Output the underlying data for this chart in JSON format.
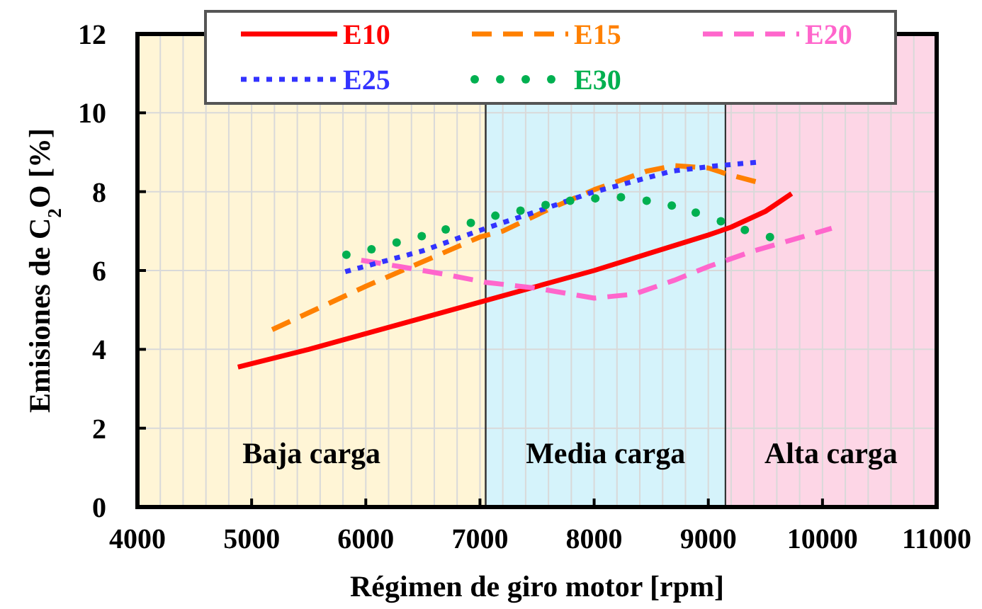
{
  "chart_data": {
    "type": "line",
    "xlabel": "Régimen de giro motor [rpm]",
    "ylabel": "Emisiones de C$_{2}$O [%]",
    "xlim": [
      4000,
      11000
    ],
    "xticks": [
      4000,
      {
        "value": 4200,
        "label": null
      },
      {
        "value": 4400,
        "label": null
      },
      {
        "value": 4600,
        "label": null
      },
      {
        "value": 4800,
        "label": null
      },
      5000,
      {
        "value": 5200,
        "label": null
      },
      {
        "value": 5400,
        "label": null
      },
      {
        "value": 5600,
        "label": null
      },
      {
        "value": 5800,
        "label": null
      },
      6000,
      {
        "value": 6200,
        "label": null
      },
      {
        "value": 6400,
        "label": null
      },
      {
        "value": 6600,
        "label": null
      },
      {
        "value": 6800,
        "label": null
      },
      7000,
      {
        "value": 7200,
        "label": null
      },
      {
        "value": 7400,
        "label": null
      },
      {
        "value": 7600,
        "label": null
      },
      {
        "value": 7800,
        "label": null
      },
      8000,
      {
        "value": 8200,
        "label": null
      },
      {
        "value": 8400,
        "label": null
      },
      {
        "value": 8600,
        "label": null
      },
      {
        "value": 8800,
        "label": null
      },
      9000,
      {
        "value": 9200,
        "label": null
      },
      {
        "value": 9400,
        "label": null
      },
      {
        "value": 9600,
        "label": null
      },
      {
        "value": 9800,
        "label": null
      },
      10000,
      {
        "value": 10200,
        "label": null
      },
      {
        "value": 10400,
        "label": null
      },
      {
        "value": 10600,
        "label": null
      },
      {
        "value": 10800,
        "label": null
      },
      11000
    ],
    "ylim": [
      0,
      12
    ],
    "yticks": [
      0,
      2,
      4,
      6,
      8,
      10,
      12
    ],
    "grid": true,
    "legend": "top",
    "bands": [
      {
        "axis": "x",
        "from": 4000,
        "to": 7050,
        "label": "Baja carga",
        "color": "#fff5d6"
      },
      {
        "axis": "x",
        "from": 7050,
        "to": 9150,
        "label": "Media carga",
        "color": "#d5f3fb"
      },
      {
        "axis": "x",
        "from": 9150,
        "to": 11000,
        "label": "Alta carga",
        "color": "#fdd6e6"
      }
    ],
    "series": [
      {
        "name": "E10",
        "color": "#ff0000",
        "line_style": "solid",
        "marker": "none",
        "x": [
          4880,
          5500,
          6000,
          6500,
          7000,
          7500,
          8000,
          8500,
          9000,
          9200,
          9500,
          9730
        ],
        "values": [
          3.55,
          4.0,
          4.4,
          4.8,
          5.2,
          5.6,
          6.0,
          6.45,
          6.9,
          7.1,
          7.5,
          7.95
        ]
      },
      {
        "name": "E15",
        "color": "#ff8000",
        "line_style": "dashed",
        "marker": "none",
        "x": [
          5180,
          6000,
          7000,
          7200,
          7600,
          8000,
          8460,
          8700,
          9000,
          9160,
          9420
        ],
        "values": [
          4.5,
          5.6,
          6.85,
          7.0,
          7.55,
          8.05,
          8.52,
          8.66,
          8.6,
          8.45,
          8.25
        ]
      },
      {
        "name": "E20",
        "color": "#ff66cc",
        "line_style": "dashed",
        "marker": "none",
        "x": [
          5960,
          6300,
          6700,
          7050,
          7500,
          8000,
          8350,
          8700,
          9000,
          9400,
          10080
        ],
        "values": [
          6.26,
          6.1,
          5.9,
          5.7,
          5.55,
          5.3,
          5.4,
          5.75,
          6.1,
          6.5,
          7.07
        ]
      },
      {
        "name": "E25",
        "color": "#3333ff",
        "line_style": "dotted",
        "marker": "none",
        "x": [
          5820,
          6500,
          7050,
          7500,
          7970,
          8680,
          9050,
          9440
        ],
        "values": [
          5.97,
          6.5,
          7.07,
          7.5,
          7.97,
          8.52,
          8.65,
          8.75
        ]
      },
      {
        "name": "E30",
        "type": "scatter",
        "color": "#00b050",
        "marker": "circle",
        "x": [
          5830,
          6050,
          6270,
          6490,
          6700,
          6920,
          7135,
          7355,
          7575,
          7790,
          8010,
          8235,
          8460,
          8680,
          8890,
          9110,
          9320,
          9540
        ],
        "values": [
          6.4,
          6.54,
          6.71,
          6.87,
          7.04,
          7.21,
          7.39,
          7.52,
          7.66,
          7.77,
          7.83,
          7.86,
          7.77,
          7.65,
          7.47,
          7.25,
          7.03,
          6.85
        ]
      }
    ]
  }
}
